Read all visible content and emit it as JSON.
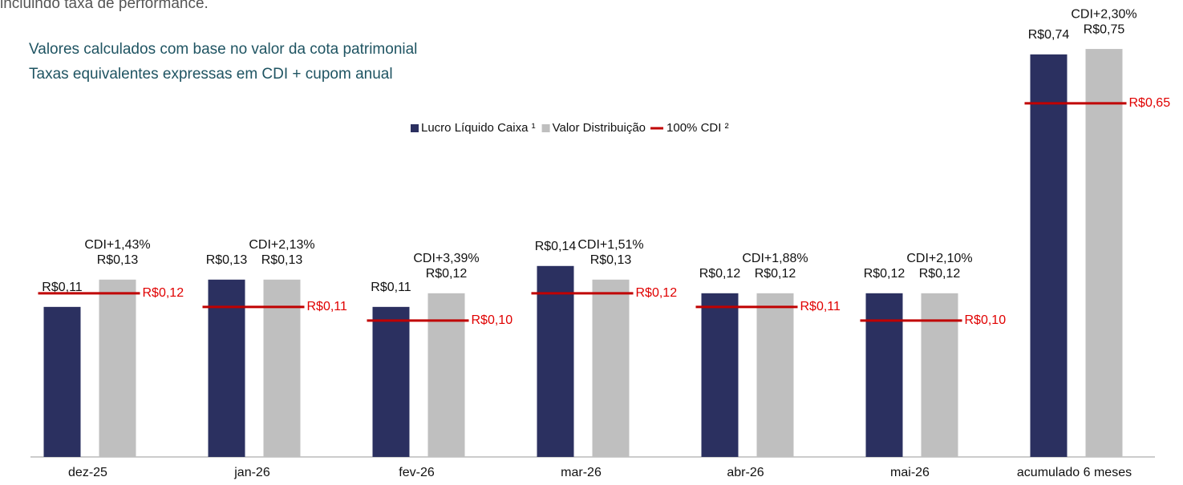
{
  "header_text": "incluindo taxa de performance.",
  "chart_data": [
    {
      "type": "bar",
      "notes": [
        "Valores calculados com base no valor da cota patrimonial",
        "Taxas equivalentes expressas em CDI + cupom anual"
      ],
      "categories": [
        "dez-25",
        "jan-26",
        "fev-26",
        "mar-26",
        "abr-26",
        "mai-26"
      ],
      "ylim": [
        0,
        0.335
      ],
      "series": [
        {
          "name": "Lucro Líquido Caixa ¹",
          "type": "bar",
          "color": "#2b3060",
          "values": [
            0.11,
            0.13,
            0.11,
            0.14,
            0.12,
            0.12
          ],
          "value_labels": [
            "R$0,11",
            "R$0,13",
            "R$0,11",
            "R$0,14",
            "R$0,12",
            "R$0,12"
          ]
        },
        {
          "name": "Valor Distribuição",
          "type": "bar",
          "color": "#bfbfbf",
          "values": [
            0.13,
            0.13,
            0.12,
            0.13,
            0.12,
            0.12
          ],
          "value_labels": [
            "R$0,13",
            "R$0,13",
            "R$0,12",
            "R$0,13",
            "R$0,12",
            "R$0,12"
          ],
          "annotations": [
            "CDI+1,43%",
            "CDI+2,13%",
            "CDI+3,39%",
            "CDI+1,51%",
            "CDI+1,88%",
            "CDI+2,10%"
          ]
        },
        {
          "name": "100% CDI ²",
          "type": "marker",
          "color": "#c00000",
          "values": [
            0.12,
            0.11,
            0.1,
            0.12,
            0.11,
            0.1
          ],
          "value_labels": [
            "R$0,12",
            "R$0,11",
            "R$0,10",
            "R$0,12",
            "R$0,11",
            "R$0,10"
          ]
        }
      ]
    },
    {
      "type": "bar",
      "categories": [
        "acumulado 6 meses"
      ],
      "ylim": [
        0,
        0.84
      ],
      "series": [
        {
          "type": "bar",
          "color": "#2b3060",
          "values": [
            0.74
          ],
          "value_labels": [
            "R$0,74"
          ]
        },
        {
          "type": "bar",
          "color": "#bfbfbf",
          "values": [
            0.75
          ],
          "value_labels": [
            "R$0,75"
          ],
          "annotations": [
            "CDI+2,30%"
          ]
        },
        {
          "type": "marker",
          "color": "#c00000",
          "values": [
            0.65
          ],
          "value_labels": [
            "R$0,65"
          ]
        }
      ]
    }
  ]
}
